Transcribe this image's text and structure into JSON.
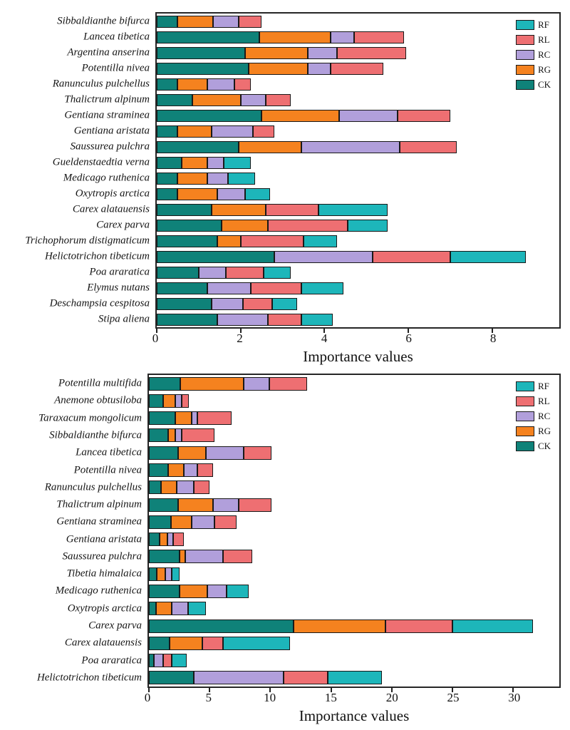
{
  "figure": {
    "xlabel_top": "Importance values",
    "xlabel_bottom": "Importance values"
  },
  "palette": {
    "RF": "#1db6ba",
    "RL": "#ee6f72",
    "RC": "#b19fdb",
    "RG": "#f5821f",
    "CK": "#0f8279"
  },
  "chart_data": [
    {
      "type": "bar",
      "subtype": "horizontal-stacked",
      "title": "",
      "xlabel": "Importance values",
      "ylabel": "",
      "xlim": [
        0,
        9.6
      ],
      "x_ticks": [
        0,
        2,
        4,
        6,
        8
      ],
      "grid": false,
      "legend_position": "top-right",
      "legend": [
        "RF",
        "RL",
        "RC",
        "RG",
        "CK"
      ],
      "stack_order": [
        "CK",
        "RG",
        "RC",
        "RL",
        "RF"
      ],
      "categories": [
        "Sibbaldianthe bifurca",
        "Lancea tibetica",
        "Argentina anserina",
        "Potentilla nivea",
        "Ranunculus pulchellus",
        "Thalictrum alpinum",
        "Gentiana straminea",
        "Gentiana aristata",
        "Saussurea pulchra",
        "Gueldenstaedtia verna",
        "Medicago ruthenica",
        "Oxytropis arctica",
        "Carex alatauensis",
        "Carex parva",
        "Trichophorum distigmaticum",
        "Helictotrichon tibeticum",
        "Poa araratica",
        "Elymus nutans",
        "Deschampsia cespitosa",
        "Stipa aliena"
      ],
      "series": [
        {
          "name": "CK",
          "values": [
            0.5,
            2.45,
            2.1,
            2.2,
            0.5,
            0.85,
            2.5,
            0.5,
            1.95,
            0.6,
            0.5,
            0.5,
            1.3,
            1.55,
            1.45,
            2.8,
            1.0,
            1.2,
            1.3,
            1.45
          ]
        },
        {
          "name": "RG",
          "values": [
            0.85,
            1.7,
            1.5,
            1.4,
            0.7,
            1.15,
            1.85,
            0.8,
            1.5,
            0.6,
            0.7,
            0.95,
            1.3,
            1.1,
            0.55,
            0,
            0,
            0,
            0,
            0
          ]
        },
        {
          "name": "RC",
          "values": [
            0.6,
            0.55,
            0.7,
            0.55,
            0.65,
            0.6,
            1.4,
            1.0,
            2.35,
            0.4,
            0.5,
            0.65,
            0,
            0,
            0,
            2.35,
            0.65,
            1.05,
            0.75,
            1.2
          ]
        },
        {
          "name": "RL",
          "values": [
            0.55,
            1.2,
            1.65,
            1.25,
            0.4,
            0.6,
            1.25,
            0.5,
            1.35,
            0,
            0,
            0,
            1.25,
            1.9,
            1.5,
            1.85,
            0.9,
            1.2,
            0.7,
            0.8
          ]
        },
        {
          "name": "RF",
          "values": [
            0,
            0,
            0,
            0,
            0,
            0,
            0,
            0,
            0,
            0.65,
            0.65,
            0.6,
            1.65,
            0.95,
            0.8,
            1.8,
            0.65,
            1.0,
            0.6,
            0.75
          ]
        }
      ]
    },
    {
      "type": "bar",
      "subtype": "horizontal-stacked",
      "title": "",
      "xlabel": "Importance values",
      "ylabel": "",
      "xlim": [
        0,
        33.8
      ],
      "x_ticks": [
        0,
        5,
        10,
        15,
        20,
        25,
        30
      ],
      "grid": false,
      "legend_position": "top-right",
      "legend": [
        "RF",
        "RL",
        "RC",
        "RG",
        "CK"
      ],
      "stack_order": [
        "CK",
        "RG",
        "RC",
        "RL",
        "RF"
      ],
      "categories": [
        "Potentilla multifida",
        "Anemone obtusiloba",
        "Taraxacum mongolicum",
        "Sibbaldianthe bifurca",
        "Lancea tibetica",
        "Potentilla nivea",
        "Ranunculus pulchellus",
        "Thalictrum alpinum",
        "Gentiana straminea",
        "Gentiana aristata",
        "Saussurea pulchra",
        "Tibetia himalaica",
        "Medicago ruthenica",
        "Oxytropis arctica",
        "Carex parva",
        "Carex alatauensis",
        "Poa araratica",
        "Helictotrichon tibeticum"
      ],
      "series": [
        {
          "name": "CK",
          "values": [
            2.6,
            1.2,
            2.2,
            1.6,
            2.4,
            1.6,
            1.0,
            2.4,
            1.8,
            0.9,
            2.5,
            0.65,
            2.5,
            0.6,
            11.9,
            1.7,
            0.4,
            3.7
          ]
        },
        {
          "name": "RG",
          "values": [
            5.2,
            1.0,
            1.3,
            0.6,
            2.3,
            1.3,
            1.3,
            2.9,
            1.7,
            0.6,
            0.5,
            0.7,
            2.3,
            1.3,
            7.6,
            2.7,
            0,
            0
          ]
        },
        {
          "name": "RC",
          "values": [
            2.1,
            0.5,
            0.5,
            0.5,
            3.1,
            1.1,
            1.4,
            2.1,
            1.9,
            0.5,
            3.1,
            0.5,
            1.6,
            1.3,
            0,
            0,
            0.8,
            7.4
          ]
        },
        {
          "name": "RL",
          "values": [
            3.1,
            0.6,
            2.8,
            2.7,
            2.3,
            1.3,
            1.3,
            2.7,
            1.8,
            0.9,
            2.4,
            0,
            0,
            0,
            5.5,
            1.7,
            0.7,
            3.6
          ]
        },
        {
          "name": "RF",
          "values": [
            0,
            0,
            0,
            0,
            0,
            0,
            0,
            0,
            0,
            0,
            0,
            0.7,
            1.8,
            1.5,
            6.6,
            5.5,
            1.2,
            4.5
          ]
        }
      ]
    }
  ]
}
